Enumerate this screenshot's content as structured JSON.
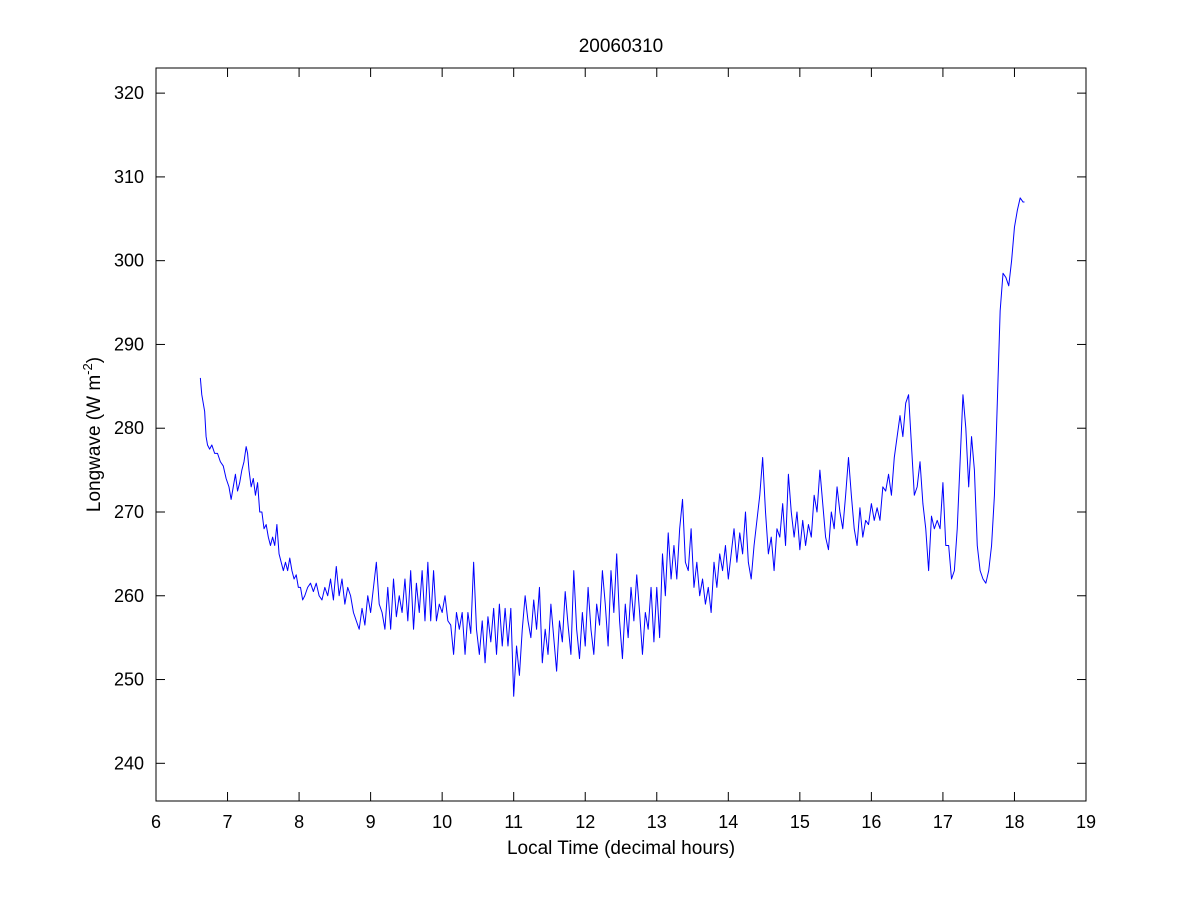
{
  "chart_data": {
    "type": "line",
    "title": "20060310",
    "xlabel": "Local Time (decimal hours)",
    "ylabel": {
      "text": "Longwave (W m",
      "superscript": "-2",
      "suffix": ")"
    },
    "xlim": [
      6,
      19
    ],
    "ylim": [
      235.5,
      323
    ],
    "xticks": [
      6,
      7,
      8,
      9,
      10,
      11,
      12,
      13,
      14,
      15,
      16,
      17,
      18,
      19
    ],
    "yticks": [
      240,
      250,
      260,
      270,
      280,
      290,
      300,
      310,
      320
    ],
    "grid": false,
    "series": [
      {
        "color": "#0000ff",
        "points": [
          [
            6.62,
            286
          ],
          [
            6.64,
            284
          ],
          [
            6.66,
            283
          ],
          [
            6.68,
            282
          ],
          [
            6.7,
            279
          ],
          [
            6.72,
            278
          ],
          [
            6.75,
            277.5
          ],
          [
            6.78,
            278
          ],
          [
            6.82,
            277
          ],
          [
            6.86,
            277
          ],
          [
            6.9,
            276
          ],
          [
            6.94,
            275.5
          ],
          [
            6.98,
            274
          ],
          [
            7.02,
            273
          ],
          [
            7.05,
            271.5
          ],
          [
            7.08,
            273
          ],
          [
            7.11,
            274.5
          ],
          [
            7.14,
            272.5
          ],
          [
            7.17,
            273.5
          ],
          [
            7.2,
            275
          ],
          [
            7.23,
            276
          ],
          [
            7.26,
            277.8
          ],
          [
            7.28,
            277
          ],
          [
            7.3,
            275
          ],
          [
            7.33,
            273
          ],
          [
            7.36,
            274
          ],
          [
            7.39,
            272
          ],
          [
            7.42,
            273.5
          ],
          [
            7.45,
            270
          ],
          [
            7.48,
            270
          ],
          [
            7.51,
            268
          ],
          [
            7.54,
            268.5
          ],
          [
            7.57,
            267
          ],
          [
            7.6,
            266
          ],
          [
            7.63,
            267
          ],
          [
            7.66,
            266
          ],
          [
            7.69,
            268.5
          ],
          [
            7.72,
            265
          ],
          [
            7.75,
            264
          ],
          [
            7.78,
            263
          ],
          [
            7.81,
            264
          ],
          [
            7.84,
            263
          ],
          [
            7.87,
            264.5
          ],
          [
            7.9,
            263
          ],
          [
            7.93,
            262
          ],
          [
            7.96,
            262.5
          ],
          [
            7.99,
            261
          ],
          [
            8.02,
            261
          ],
          [
            8.05,
            259.5
          ],
          [
            8.08,
            260
          ],
          [
            8.12,
            261
          ],
          [
            8.16,
            261.5
          ],
          [
            8.2,
            260.5
          ],
          [
            8.24,
            261.5
          ],
          [
            8.28,
            260
          ],
          [
            8.32,
            259.5
          ],
          [
            8.36,
            261
          ],
          [
            8.4,
            260
          ],
          [
            8.44,
            262
          ],
          [
            8.48,
            259.5
          ],
          [
            8.52,
            263.5
          ],
          [
            8.56,
            260
          ],
          [
            8.6,
            262
          ],
          [
            8.64,
            259
          ],
          [
            8.68,
            261
          ],
          [
            8.72,
            260
          ],
          [
            8.76,
            258
          ],
          [
            8.8,
            257
          ],
          [
            8.84,
            256
          ],
          [
            8.88,
            258.5
          ],
          [
            8.92,
            256.5
          ],
          [
            8.96,
            260
          ],
          [
            9.0,
            258
          ],
          [
            9.04,
            261
          ],
          [
            9.08,
            264
          ],
          [
            9.12,
            259
          ],
          [
            9.16,
            258
          ],
          [
            9.2,
            256
          ],
          [
            9.24,
            261
          ],
          [
            9.28,
            256
          ],
          [
            9.32,
            262
          ],
          [
            9.36,
            257.5
          ],
          [
            9.4,
            260
          ],
          [
            9.44,
            258
          ],
          [
            9.48,
            262
          ],
          [
            9.52,
            257
          ],
          [
            9.56,
            263
          ],
          [
            9.6,
            256
          ],
          [
            9.64,
            261.5
          ],
          [
            9.68,
            258
          ],
          [
            9.72,
            263
          ],
          [
            9.76,
            257
          ],
          [
            9.8,
            264
          ],
          [
            9.84,
            257
          ],
          [
            9.88,
            263
          ],
          [
            9.92,
            257
          ],
          [
            9.96,
            259
          ],
          [
            10.0,
            258
          ],
          [
            10.04,
            260
          ],
          [
            10.08,
            257
          ],
          [
            10.12,
            256.5
          ],
          [
            10.16,
            253
          ],
          [
            10.2,
            258
          ],
          [
            10.24,
            256
          ],
          [
            10.28,
            258
          ],
          [
            10.32,
            253
          ],
          [
            10.36,
            258
          ],
          [
            10.4,
            255.5
          ],
          [
            10.44,
            264
          ],
          [
            10.48,
            256
          ],
          [
            10.52,
            253
          ],
          [
            10.56,
            257
          ],
          [
            10.6,
            252
          ],
          [
            10.64,
            257.5
          ],
          [
            10.68,
            254.5
          ],
          [
            10.72,
            258.5
          ],
          [
            10.76,
            253
          ],
          [
            10.8,
            259
          ],
          [
            10.84,
            254
          ],
          [
            10.88,
            258.5
          ],
          [
            10.92,
            254
          ],
          [
            10.96,
            258.5
          ],
          [
            11.0,
            248
          ],
          [
            11.04,
            254
          ],
          [
            11.08,
            250.5
          ],
          [
            11.12,
            256
          ],
          [
            11.16,
            260
          ],
          [
            11.2,
            257
          ],
          [
            11.24,
            255
          ],
          [
            11.28,
            259.5
          ],
          [
            11.32,
            256
          ],
          [
            11.36,
            261
          ],
          [
            11.4,
            252
          ],
          [
            11.44,
            256
          ],
          [
            11.48,
            253
          ],
          [
            11.52,
            259
          ],
          [
            11.56,
            255
          ],
          [
            11.6,
            251
          ],
          [
            11.64,
            257
          ],
          [
            11.68,
            254.5
          ],
          [
            11.72,
            260.5
          ],
          [
            11.76,
            256.5
          ],
          [
            11.8,
            253
          ],
          [
            11.84,
            263
          ],
          [
            11.88,
            256
          ],
          [
            11.92,
            252.5
          ],
          [
            11.96,
            258
          ],
          [
            12.0,
            254
          ],
          [
            12.04,
            261
          ],
          [
            12.08,
            256
          ],
          [
            12.12,
            253
          ],
          [
            12.16,
            259
          ],
          [
            12.2,
            256.5
          ],
          [
            12.24,
            263
          ],
          [
            12.28,
            259
          ],
          [
            12.32,
            254
          ],
          [
            12.36,
            263
          ],
          [
            12.4,
            258
          ],
          [
            12.44,
            265
          ],
          [
            12.48,
            257
          ],
          [
            12.52,
            252.5
          ],
          [
            12.56,
            259
          ],
          [
            12.6,
            255
          ],
          [
            12.64,
            261
          ],
          [
            12.68,
            257
          ],
          [
            12.72,
            262.5
          ],
          [
            12.76,
            258
          ],
          [
            12.8,
            253
          ],
          [
            12.84,
            258
          ],
          [
            12.88,
            256
          ],
          [
            12.92,
            261
          ],
          [
            12.96,
            254.5
          ],
          [
            13.0,
            261
          ],
          [
            13.04,
            255
          ],
          [
            13.08,
            265
          ],
          [
            13.12,
            260
          ],
          [
            13.16,
            267.5
          ],
          [
            13.2,
            262
          ],
          [
            13.24,
            266
          ],
          [
            13.28,
            262
          ],
          [
            13.32,
            268
          ],
          [
            13.36,
            271.5
          ],
          [
            13.4,
            264
          ],
          [
            13.44,
            263
          ],
          [
            13.48,
            268
          ],
          [
            13.52,
            261
          ],
          [
            13.56,
            264
          ],
          [
            13.6,
            260
          ],
          [
            13.64,
            262
          ],
          [
            13.68,
            259
          ],
          [
            13.72,
            261
          ],
          [
            13.76,
            258
          ],
          [
            13.8,
            264
          ],
          [
            13.84,
            261
          ],
          [
            13.88,
            265
          ],
          [
            13.92,
            263
          ],
          [
            13.96,
            266
          ],
          [
            14.0,
            262
          ],
          [
            14.04,
            265
          ],
          [
            14.08,
            268
          ],
          [
            14.12,
            264
          ],
          [
            14.16,
            267.5
          ],
          [
            14.2,
            265
          ],
          [
            14.24,
            270
          ],
          [
            14.28,
            264
          ],
          [
            14.32,
            262
          ],
          [
            14.36,
            266
          ],
          [
            14.4,
            269
          ],
          [
            14.44,
            272
          ],
          [
            14.48,
            276.5
          ],
          [
            14.52,
            270
          ],
          [
            14.56,
            265
          ],
          [
            14.6,
            267
          ],
          [
            14.64,
            263
          ],
          [
            14.68,
            268
          ],
          [
            14.72,
            267
          ],
          [
            14.76,
            271
          ],
          [
            14.8,
            266
          ],
          [
            14.84,
            274.5
          ],
          [
            14.88,
            270
          ],
          [
            14.92,
            267
          ],
          [
            14.96,
            270
          ],
          [
            15.0,
            265.5
          ],
          [
            15.04,
            269
          ],
          [
            15.08,
            266
          ],
          [
            15.12,
            268.5
          ],
          [
            15.16,
            267
          ],
          [
            15.2,
            272
          ],
          [
            15.24,
            270
          ],
          [
            15.28,
            275
          ],
          [
            15.32,
            271
          ],
          [
            15.36,
            267
          ],
          [
            15.4,
            265.5
          ],
          [
            15.44,
            270
          ],
          [
            15.48,
            268
          ],
          [
            15.52,
            273
          ],
          [
            15.56,
            270
          ],
          [
            15.6,
            268
          ],
          [
            15.64,
            272
          ],
          [
            15.68,
            276.5
          ],
          [
            15.72,
            272
          ],
          [
            15.76,
            268
          ],
          [
            15.8,
            266
          ],
          [
            15.84,
            270.5
          ],
          [
            15.88,
            267
          ],
          [
            15.92,
            269
          ],
          [
            15.96,
            268.5
          ],
          [
            16.0,
            271
          ],
          [
            16.04,
            269
          ],
          [
            16.08,
            270.5
          ],
          [
            16.12,
            269
          ],
          [
            16.16,
            273
          ],
          [
            16.2,
            272.5
          ],
          [
            16.24,
            274.5
          ],
          [
            16.28,
            272
          ],
          [
            16.32,
            276.5
          ],
          [
            16.36,
            279
          ],
          [
            16.4,
            281.5
          ],
          [
            16.44,
            279
          ],
          [
            16.48,
            283
          ],
          [
            16.52,
            284
          ],
          [
            16.56,
            278
          ],
          [
            16.6,
            272
          ],
          [
            16.64,
            273
          ],
          [
            16.68,
            276
          ],
          [
            16.72,
            271
          ],
          [
            16.76,
            268
          ],
          [
            16.8,
            263
          ],
          [
            16.84,
            269.5
          ],
          [
            16.88,
            268
          ],
          [
            16.92,
            269
          ],
          [
            16.96,
            268
          ],
          [
            17.0,
            273.5
          ],
          [
            17.04,
            266
          ],
          [
            17.08,
            266
          ],
          [
            17.12,
            262
          ],
          [
            17.16,
            263
          ],
          [
            17.2,
            268
          ],
          [
            17.24,
            276
          ],
          [
            17.28,
            284
          ],
          [
            17.32,
            280
          ],
          [
            17.36,
            273
          ],
          [
            17.4,
            279
          ],
          [
            17.44,
            275
          ],
          [
            17.48,
            266
          ],
          [
            17.52,
            263
          ],
          [
            17.56,
            262
          ],
          [
            17.6,
            261.5
          ],
          [
            17.64,
            263
          ],
          [
            17.68,
            266
          ],
          [
            17.72,
            272
          ],
          [
            17.76,
            283
          ],
          [
            17.8,
            294
          ],
          [
            17.84,
            298.5
          ],
          [
            17.88,
            298
          ],
          [
            17.92,
            297
          ],
          [
            17.96,
            300
          ],
          [
            18.0,
            304
          ],
          [
            18.04,
            306
          ],
          [
            18.08,
            307.5
          ],
          [
            18.12,
            307
          ],
          [
            18.14,
            307
          ]
        ]
      }
    ]
  }
}
